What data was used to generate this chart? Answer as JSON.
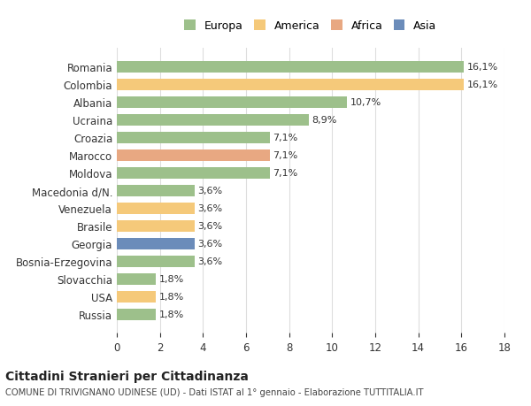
{
  "categories": [
    "Romania",
    "Colombia",
    "Albania",
    "Ucraina",
    "Croazia",
    "Marocco",
    "Moldova",
    "Macedonia d/N.",
    "Venezuela",
    "Brasile",
    "Georgia",
    "Bosnia-Erzegovina",
    "Slovacchia",
    "USA",
    "Russia"
  ],
  "values": [
    16.1,
    16.1,
    10.7,
    8.9,
    7.1,
    7.1,
    7.1,
    3.6,
    3.6,
    3.6,
    3.6,
    3.6,
    1.8,
    1.8,
    1.8
  ],
  "labels": [
    "16,1%",
    "16,1%",
    "10,7%",
    "8,9%",
    "7,1%",
    "7,1%",
    "7,1%",
    "3,6%",
    "3,6%",
    "3,6%",
    "3,6%",
    "3,6%",
    "1,8%",
    "1,8%",
    "1,8%"
  ],
  "continents": [
    "Europa",
    "America",
    "Europa",
    "Europa",
    "Europa",
    "Africa",
    "Europa",
    "Europa",
    "America",
    "America",
    "Asia",
    "Europa",
    "Europa",
    "America",
    "Europa"
  ],
  "colors": {
    "Europa": "#9dc08b",
    "America": "#f5c97a",
    "Africa": "#e8a882",
    "Asia": "#6b8cba"
  },
  "legend_order": [
    "Europa",
    "America",
    "Africa",
    "Asia"
  ],
  "xlim": [
    0,
    18
  ],
  "xticks": [
    0,
    2,
    4,
    6,
    8,
    10,
    12,
    14,
    16,
    18
  ],
  "title": "Cittadini Stranieri per Cittadinanza",
  "subtitle": "COMUNE DI TRIVIGNANO UDINESE (UD) - Dati ISTAT al 1° gennaio - Elaborazione TUTTITALIA.IT",
  "background_color": "#ffffff",
  "grid_color": "#dddddd",
  "bar_height": 0.65
}
